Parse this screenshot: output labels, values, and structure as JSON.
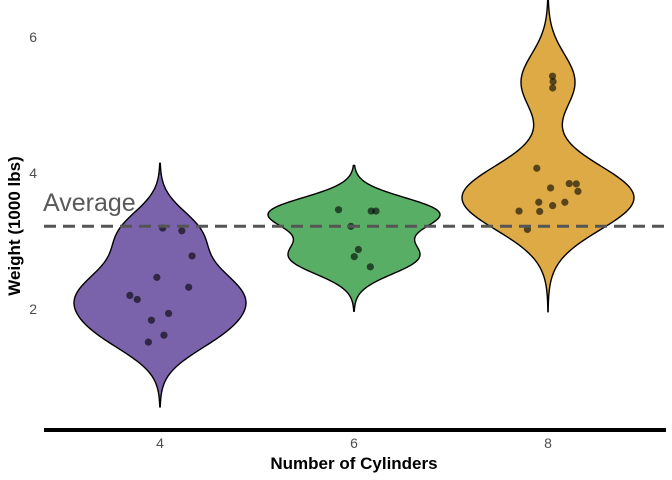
{
  "chart_data": {
    "type": "violin",
    "title": "",
    "xlabel": "Number of Cylinders",
    "ylabel": "Weight (1000 lbs)",
    "categories": [
      "4",
      "6",
      "8"
    ],
    "ylim": [
      0.25,
      6.25
    ],
    "yticks": [
      "2",
      "4",
      "6"
    ],
    "grid": false,
    "reference_line": {
      "value": 3.217,
      "label": "Average",
      "style": "dashed",
      "color": "#555555"
    },
    "groups": [
      {
        "name": "4",
        "color": "#7a63ab",
        "points": [
          2.32,
          2.2,
          1.615,
          1.835,
          2.465,
          1.935,
          2.14,
          1.513,
          3.19,
          2.78,
          3.15
        ]
      },
      {
        "name": "6",
        "color": "#59ae66",
        "points": [
          2.62,
          2.875,
          3.215,
          3.46,
          3.44,
          3.44,
          2.77
        ]
      },
      {
        "name": "8",
        "color": "#ddaa45",
        "points": [
          3.44,
          3.57,
          4.07,
          3.73,
          3.78,
          5.25,
          5.424,
          5.345,
          3.52,
          3.435,
          3.84,
          3.845,
          3.17,
          3.57
        ]
      }
    ]
  }
}
